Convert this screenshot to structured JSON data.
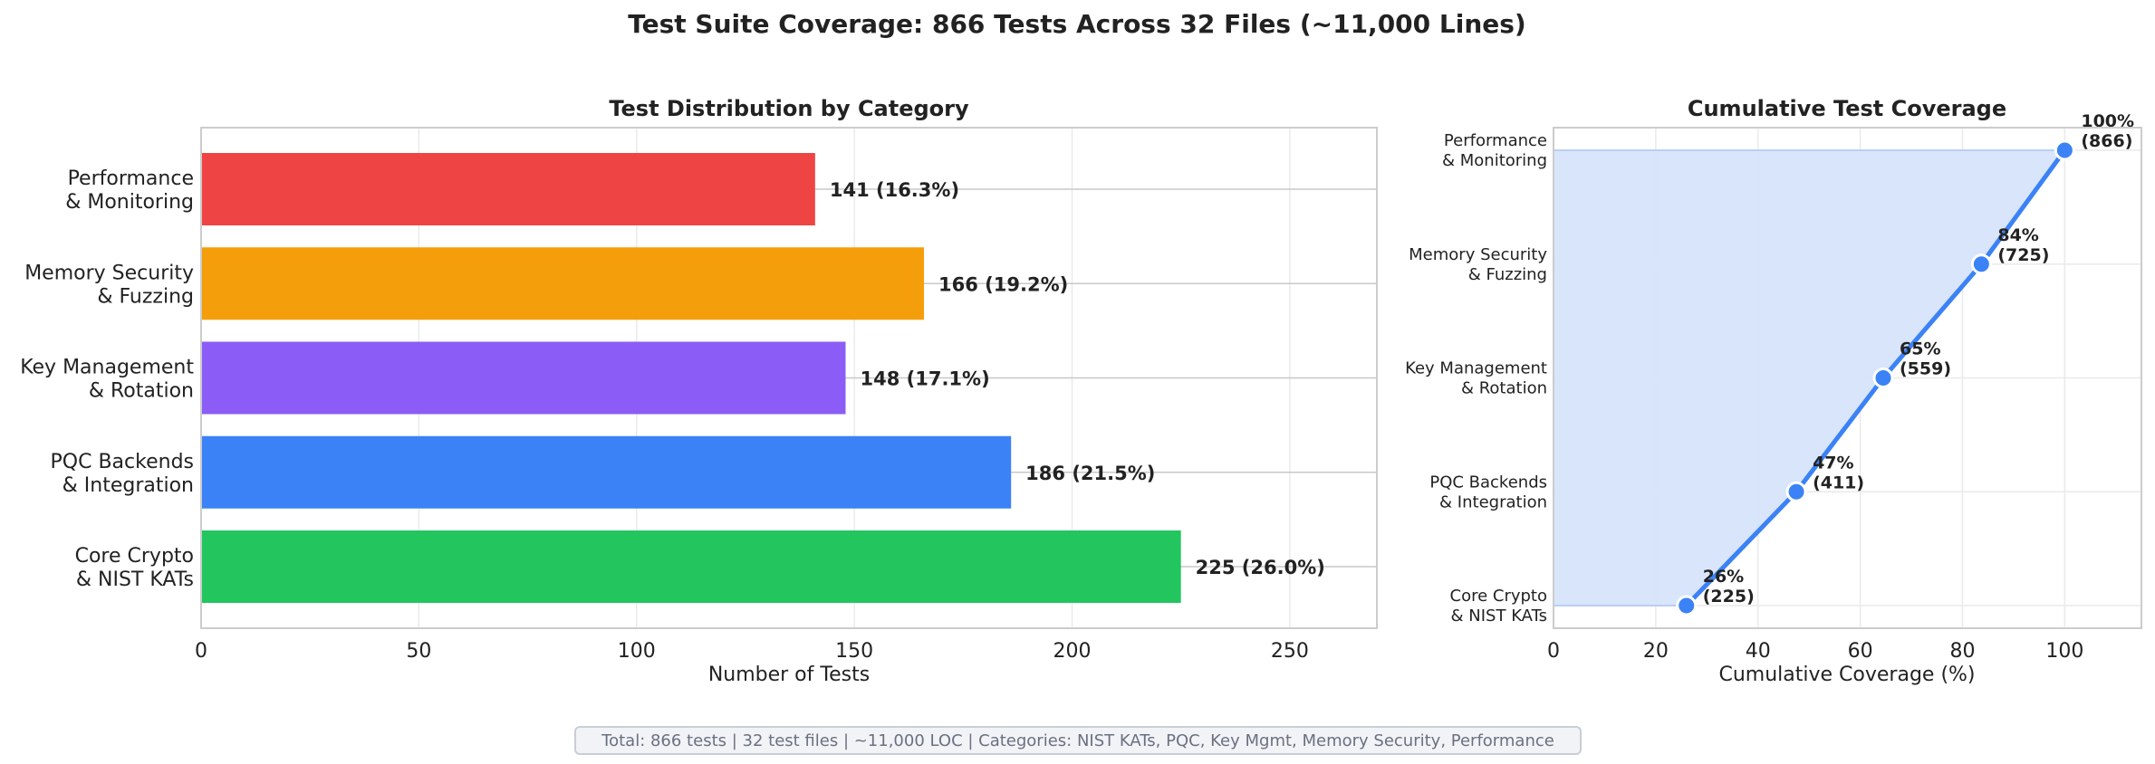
{
  "title": "Test Suite Coverage: 866 Tests Across 32 Files (~11,000 Lines)",
  "footer": "Total: 866 tests | 32 test files | ~11,000 LOC | Categories: NIST KATs, PQC, Key Mgmt, Memory Security, Performance",
  "chart_data": [
    {
      "type": "bar",
      "orientation": "horizontal",
      "title": "Test Distribution by Category",
      "xlabel": "Number of Tests",
      "ylabel": "",
      "xlim": [
        0,
        270
      ],
      "xticks": [
        0,
        50,
        100,
        150,
        200,
        250
      ],
      "grid": true,
      "categories": [
        [
          "Core Crypto",
          "& NIST KATs"
        ],
        [
          "PQC Backends",
          "& Integration"
        ],
        [
          "Key Management",
          "& Rotation"
        ],
        [
          "Memory Security",
          "& Fuzzing"
        ],
        [
          "Performance",
          "& Monitoring"
        ]
      ],
      "values": [
        225,
        186,
        148,
        166,
        141
      ],
      "data_labels": [
        "225 (26.0%)",
        "186 (21.5%)",
        "148 (17.1%)",
        "166 (19.2%)",
        "141 (16.3%)"
      ],
      "colors": [
        "#22c55e",
        "#3b82f6",
        "#8b5cf6",
        "#f59e0b",
        "#ef4444"
      ]
    },
    {
      "type": "line",
      "title": "Cumulative Test Coverage",
      "xlabel": "Cumulative Coverage (%)",
      "ylabel": "",
      "xlim": [
        0,
        115
      ],
      "xticks": [
        0,
        20,
        40,
        60,
        80,
        100
      ],
      "grid": true,
      "fill": "area",
      "categories": [
        [
          "Core Crypto",
          "& NIST KATs"
        ],
        [
          "PQC Backends",
          "& Integration"
        ],
        [
          "Key Management",
          "& Rotation"
        ],
        [
          "Memory Security",
          "& Fuzzing"
        ],
        [
          "Performance",
          "& Monitoring"
        ]
      ],
      "x": [
        26,
        47.5,
        64.5,
        83.7,
        100
      ],
      "point_labels": [
        [
          "26%",
          "(225)"
        ],
        [
          "47%",
          "(411)"
        ],
        [
          "65%",
          "(559)"
        ],
        [
          "84%",
          "(725)"
        ],
        [
          "100%",
          "(866)"
        ]
      ],
      "line_color": "#3b82f6",
      "fill_color": "#d6e4fb"
    }
  ]
}
